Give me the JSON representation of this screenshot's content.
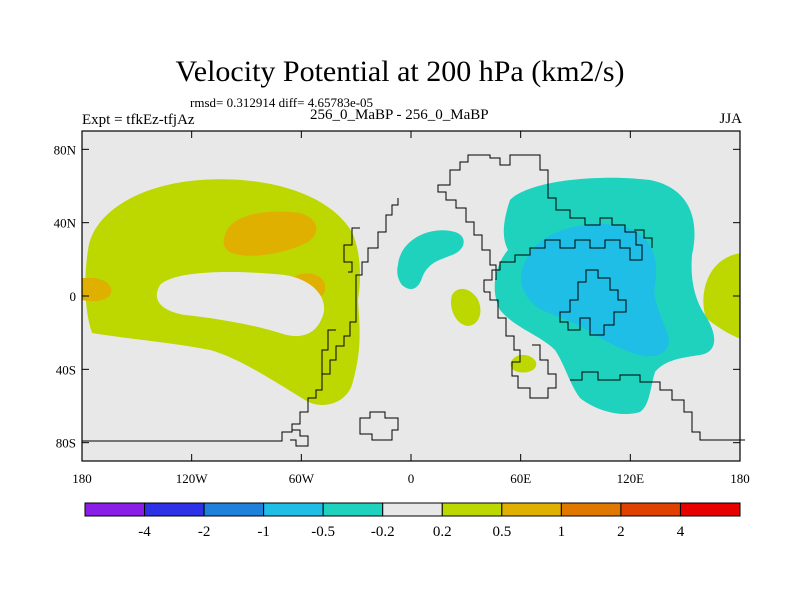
{
  "chart_data": {
    "type": "heatmap",
    "title": "Velocity Potential at 200 hPa (km2/s)",
    "stats_line": "rmsd= 0.312914 diff= 4.65783e-05",
    "left_label": "Expt = tfkEz-tfjAz",
    "center_label": "256_0_MaBP - 256_0_MaBP",
    "right_label": "JJA",
    "x_ticks": [
      "180",
      "120W",
      "60W",
      "0",
      "60E",
      "120E",
      "180"
    ],
    "y_ticks": [
      "80N",
      "40N",
      "0",
      "40S",
      "80S"
    ],
    "x_tick_values": [
      -180,
      -120,
      -60,
      0,
      60,
      120,
      180
    ],
    "y_tick_values": [
      80,
      40,
      0,
      -40,
      -80
    ],
    "xlim": [
      -180,
      180
    ],
    "ylim": [
      -90,
      90
    ],
    "colorbar": {
      "labels": [
        "-4",
        "-2",
        "-1",
        "-0.5",
        "-0.2",
        "0.2",
        "0.5",
        "1",
        "2",
        "4"
      ],
      "colors": [
        "#8b1ee6",
        "#2d32e6",
        "#1e82dc",
        "#1ebee6",
        "#1ed2be",
        "#e8e8e8",
        "#bcd800",
        "#e0b000",
        "#e07800",
        "#e04000",
        "#e60000"
      ]
    },
    "background_color": "#e8e8e8"
  }
}
